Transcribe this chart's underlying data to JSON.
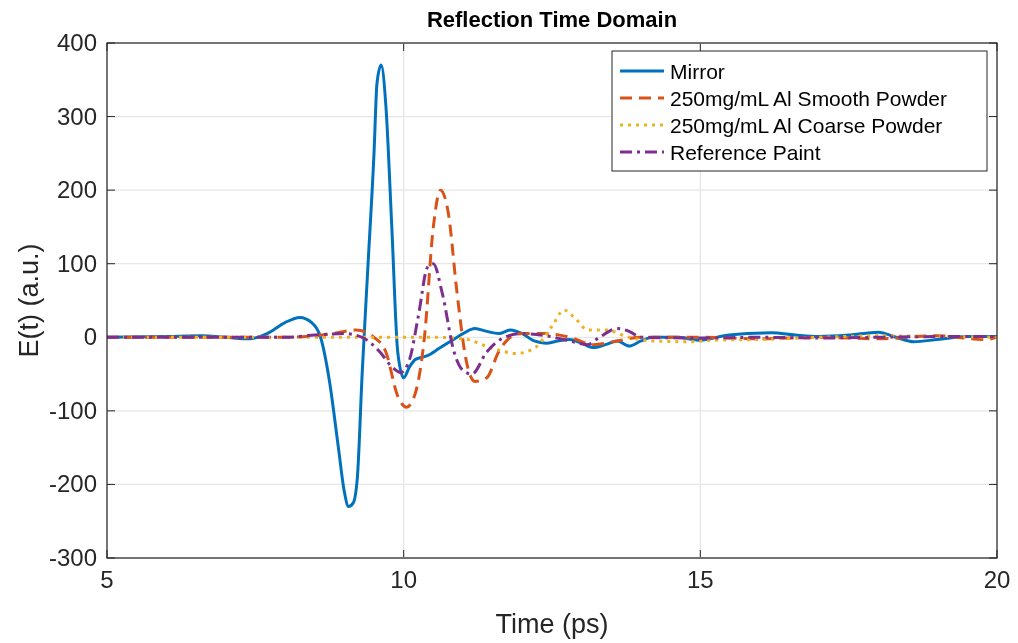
{
  "chart_data": {
    "type": "line",
    "title": "Reflection Time Domain",
    "xlabel": "Time (ps)",
    "ylabel": "E(t) (a.u.)",
    "xlim": [
      5,
      20
    ],
    "xticks": [
      5,
      10,
      15,
      20
    ],
    "ylim": [
      -300,
      400
    ],
    "yticks": [
      -300,
      -200,
      -100,
      0,
      100,
      200,
      300,
      400
    ],
    "grid": true,
    "legend": "top right",
    "series": [
      {
        "name": "Mirror",
        "color": "#0072bd",
        "line_style": "solid",
        "x": [
          5,
          6,
          6.6,
          7,
          7.4,
          7.7,
          8,
          8.25,
          8.45,
          8.6,
          8.75,
          8.9,
          9.0,
          9.07,
          9.15,
          9.22,
          9.3,
          9.4,
          9.5,
          9.55,
          9.62,
          9.7,
          9.8,
          9.9,
          10.0,
          10.1,
          10.2,
          10.4,
          10.6,
          10.8,
          11.0,
          11.2,
          11.4,
          11.6,
          11.8,
          12.0,
          12.2,
          12.4,
          12.6,
          12.8,
          13.0,
          13.2,
          13.4,
          13.6,
          13.8,
          14.0,
          14.2,
          14.6,
          15.0,
          15.4,
          15.8,
          16.2,
          16.6,
          17.0,
          17.5,
          18.0,
          18.3,
          18.6,
          19,
          19.5,
          20
        ],
        "values": [
          0,
          1,
          2,
          0,
          -2,
          5,
          20,
          27,
          20,
          0,
          -60,
          -150,
          -210,
          -230,
          -225,
          -190,
          -50,
          100,
          250,
          345,
          370,
          315,
          150,
          -20,
          -55,
          -40,
          -30,
          -25,
          -15,
          -5,
          5,
          12,
          8,
          5,
          10,
          5,
          -5,
          -8,
          -5,
          -3,
          -8,
          -14,
          -10,
          -5,
          -12,
          -5,
          0,
          0,
          -4,
          2,
          5,
          6,
          3,
          1,
          3,
          7,
          0,
          -6,
          -3,
          1,
          1
        ]
      },
      {
        "name": "250mg/mL Al Smooth Powder",
        "color": "#d95319",
        "line_style": "dashed",
        "x": [
          5,
          8,
          8.8,
          9.2,
          9.5,
          9.7,
          9.9,
          10.05,
          10.2,
          10.35,
          10.5,
          10.62,
          10.75,
          10.9,
          11.05,
          11.2,
          11.4,
          11.6,
          11.8,
          12.0,
          12.4,
          12.8,
          13.2,
          13.6,
          14.0,
          15,
          16,
          17,
          18,
          19,
          19.8,
          20
        ],
        "values": [
          0,
          0,
          5,
          10,
          0,
          -20,
          -80,
          -95,
          -75,
          0,
          150,
          200,
          170,
          60,
          -30,
          -60,
          -55,
          -20,
          0,
          5,
          5,
          0,
          -10,
          -5,
          0,
          0,
          -2,
          0,
          -2,
          2,
          -3,
          0
        ]
      },
      {
        "name": "250mg/mL Al Coarse Powder",
        "color": "#edb120",
        "line_style": "dotted",
        "x": [
          5,
          10.5,
          11.0,
          11.5,
          11.9,
          12.2,
          12.5,
          12.7,
          12.9,
          13.1,
          13.4,
          13.8,
          14.2,
          14.8,
          15.2,
          16,
          17,
          18,
          20
        ],
        "values": [
          0,
          0,
          -2,
          -15,
          -22,
          -15,
          15,
          37,
          25,
          10,
          10,
          0,
          -5,
          -6,
          -4,
          -3,
          0,
          2,
          0
        ]
      },
      {
        "name": "Reference Paint",
        "color": "#7e2f8e",
        "line_style": "dashdot",
        "x": [
          5,
          8,
          8.5,
          9.0,
          9.3,
          9.6,
          9.8,
          9.95,
          10.1,
          10.25,
          10.4,
          10.5,
          10.65,
          10.85,
          11.0,
          11.15,
          11.4,
          11.7,
          12.0,
          12.4,
          12.8,
          13.1,
          13.3,
          13.6,
          13.8,
          14.0,
          15,
          16,
          17,
          18,
          19,
          20
        ],
        "values": [
          0,
          0,
          3,
          5,
          0,
          -20,
          -40,
          -48,
          -30,
          30,
          95,
          100,
          60,
          -20,
          -45,
          -50,
          -20,
          0,
          5,
          2,
          -5,
          -10,
          0,
          12,
          8,
          0,
          -1,
          0,
          -1,
          0,
          1,
          1
        ]
      }
    ]
  }
}
